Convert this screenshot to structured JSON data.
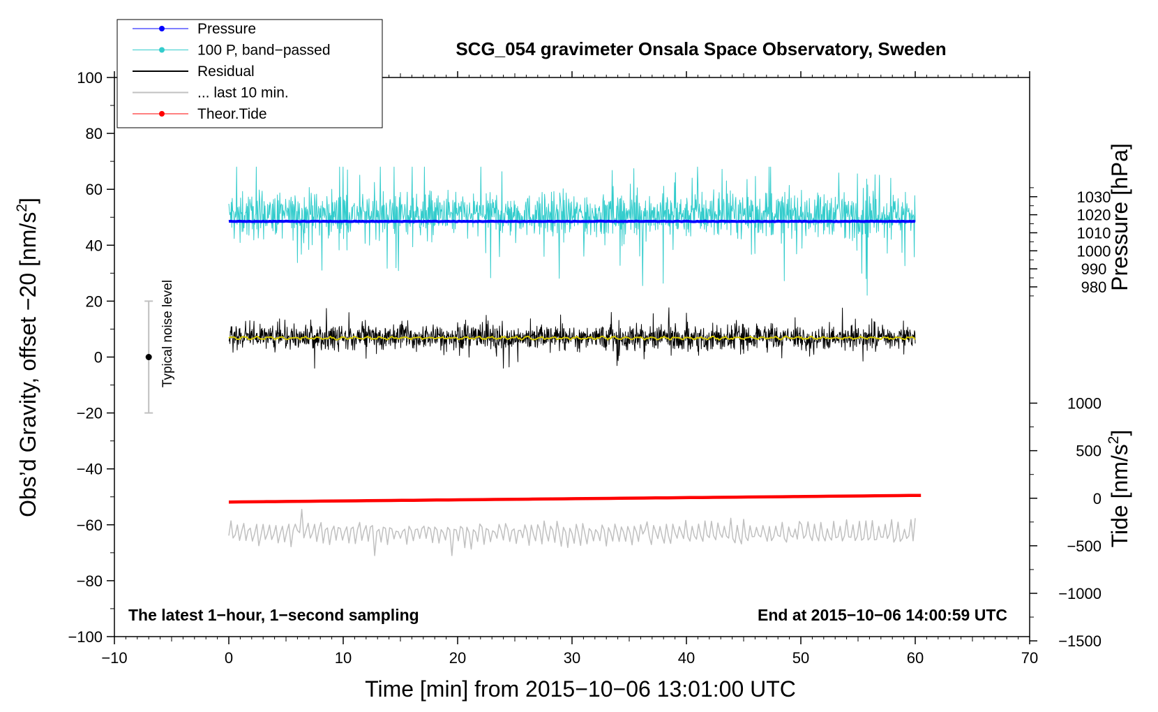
{
  "chart_data": {
    "type": "line",
    "title": "SCG_054 gravimeter Onsala Space Observatory, Sweden",
    "xlabel": "Time [min] from 2015−10−06 13:01:00 UTC",
    "ylabel_left": "Obs’d Gravity, offset −20 [nm/s",
    "ylabel_left_sup": "2",
    "ylabel_left_tail": "]",
    "ylabel_right_pressure": "Pressure [hPa]",
    "ylabel_right_tide": "Tide [nm/s",
    "ylabel_right_tide_sup": "2",
    "ylabel_right_tide_tail": "]",
    "xlim": [
      -10,
      70
    ],
    "ylim_left": [
      -100,
      100
    ],
    "x_ticks": [
      {
        "value": -10,
        "label": "−10"
      },
      {
        "value": 0,
        "label": "0"
      },
      {
        "value": 10,
        "label": "10"
      },
      {
        "value": 20,
        "label": "20"
      },
      {
        "value": 30,
        "label": "30"
      },
      {
        "value": 40,
        "label": "40"
      },
      {
        "value": 50,
        "label": "50"
      },
      {
        "value": 60,
        "label": "60"
      },
      {
        "value": 70,
        "label": "70"
      }
    ],
    "left_ticks": [
      {
        "value": 100,
        "label": "100"
      },
      {
        "value": 80,
        "label": "80"
      },
      {
        "value": 60,
        "label": "60"
      },
      {
        "value": 40,
        "label": "40"
      },
      {
        "value": 20,
        "label": "20"
      },
      {
        "value": 0,
        "label": "0"
      },
      {
        "value": -20,
        "label": "−20"
      },
      {
        "value": -40,
        "label": "−40"
      },
      {
        "value": -60,
        "label": "−60"
      },
      {
        "value": -80,
        "label": "−80"
      },
      {
        "value": -100,
        "label": "−100"
      }
    ],
    "pressure_axis": {
      "scale_hpa_per_unit": 1.55,
      "ref_hpa": 1000,
      "ref_left": 38,
      "ticks": [
        {
          "value": 1030,
          "label": "1030"
        },
        {
          "value": 1020,
          "label": "1020"
        },
        {
          "value": 1010,
          "label": "1010"
        },
        {
          "value": 1000,
          "label": "1000"
        },
        {
          "value": 990,
          "label": "990"
        },
        {
          "value": 980,
          "label": "980"
        }
      ]
    },
    "tide_axis": {
      "scale_per_unit": 29.4,
      "ref_tide": 0,
      "ref_left": -50.5,
      "ticks": [
        {
          "value": 1000,
          "label": "1000"
        },
        {
          "value": 500,
          "label": "500"
        },
        {
          "value": 0,
          "label": "0"
        },
        {
          "value": -500,
          "label": "−500"
        },
        {
          "value": -1000,
          "label": "−1000"
        },
        {
          "value": -1500,
          "label": "−1500"
        }
      ]
    },
    "series": [
      {
        "name": "Pressure",
        "color": "#0000ff",
        "x_start": 0,
        "x_end": 60,
        "level_hpa": 1016.3,
        "noise": 0.3
      },
      {
        "name": "100 P, band−passed",
        "color": "#33cccc",
        "x_start": 0,
        "x_end": 60,
        "center": 51,
        "amplitude": 6,
        "spike_min": 17,
        "spike_max": 68
      },
      {
        "name": "Residual",
        "color": "#000000",
        "x_start": 0,
        "x_end": 60,
        "center": 7,
        "amplitude": 4,
        "min": -4,
        "max": 18
      },
      {
        "name": "... last 10 min.",
        "color": "#c0c0c0",
        "x_start": 0,
        "x_end": 60,
        "center": -63,
        "amplitude": 3.5,
        "min": -71,
        "max": -52
      },
      {
        "name": "Theor.Tide",
        "color": "#ff0000",
        "x_start": 0,
        "x_end": 60.5,
        "tide_start": -40,
        "tide_end": 30
      },
      {
        "name": "",
        "color": "#d4c800",
        "x_start": 0,
        "x_end": 60,
        "center": 6.8,
        "amplitude": 0.6
      }
    ],
    "noise_bar": {
      "x": -7,
      "y": 0,
      "y_min": -20,
      "y_max": 20,
      "label": "Typical noise level"
    },
    "notes": {
      "bottom_left": "The latest 1−hour, 1−second sampling",
      "bottom_right": "End at 2015−10−06 14:00:59 UTC"
    },
    "legend_placement": "top-left"
  }
}
